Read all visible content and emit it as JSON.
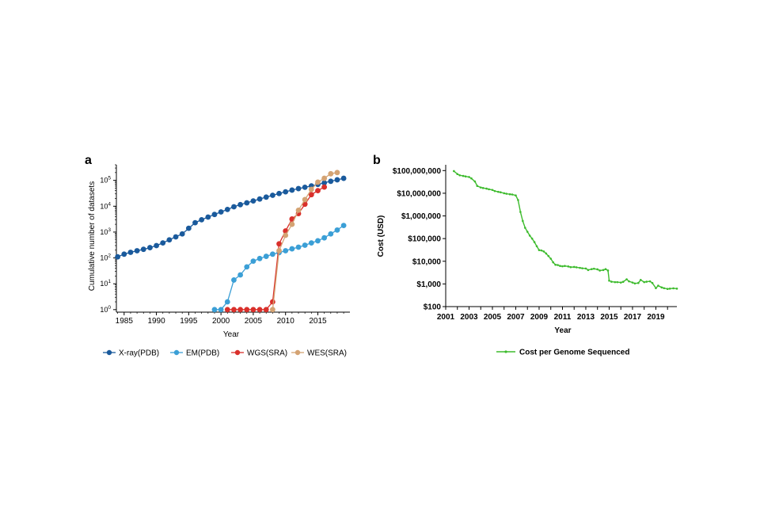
{
  "panels": {
    "a": {
      "letter": "a",
      "chart_data": {
        "type": "line",
        "log_scale_y": true,
        "xlabel": "Year",
        "ylabel": "Cumulative number of datasets",
        "xlim": [
          1983.8,
          2019.6
        ],
        "ylim": [
          0.8,
          400000
        ],
        "x_ticks": [
          1985,
          1990,
          1995,
          2000,
          2005,
          2010,
          2015
        ],
        "x_tick_labels": [
          "1985",
          "1990",
          "1995",
          "2000",
          "2005",
          "2010",
          "2015"
        ],
        "y_ticks": [
          1,
          10,
          100,
          1000,
          10000,
          100000
        ],
        "y_tick_exponents": [
          "0",
          "1",
          "2",
          "3",
          "4",
          "5"
        ],
        "y_tick_base": "10",
        "legend_position": "bottom",
        "series": [
          {
            "name": "X-ray(PDB)",
            "color": "#1a5a9c",
            "x": [
              1984,
              1985,
              1986,
              1987,
              1988,
              1989,
              1990,
              1991,
              1992,
              1993,
              1994,
              1995,
              1996,
              1997,
              1998,
              1999,
              2000,
              2001,
              2002,
              2003,
              2004,
              2005,
              2006,
              2007,
              2008,
              2009,
              2010,
              2011,
              2012,
              2013,
              2014,
              2015,
              2016,
              2017,
              2018,
              2019
            ],
            "y": [
              110,
              140,
              165,
              190,
              215,
              250,
              300,
              380,
              500,
              650,
              850,
              1400,
              2300,
              3000,
              3800,
              4800,
              6000,
              7500,
              9500,
              11500,
              13500,
              16000,
              19000,
              22500,
              26500,
              31000,
              36000,
              42000,
              48000,
              54000,
              61000,
              70000,
              80000,
              92000,
              105000,
              120000
            ]
          },
          {
            "name": "EM(PDB)",
            "color": "#3b9fd6",
            "x": [
              1999,
              2000,
              2001,
              2002,
              2003,
              2004,
              2005,
              2006,
              2007,
              2008,
              2009,
              2010,
              2011,
              2012,
              2013,
              2014,
              2015,
              2016,
              2017,
              2018,
              2019
            ],
            "y": [
              1,
              1,
              2,
              14,
              22,
              45,
              75,
              95,
              115,
              140,
              160,
              190,
              225,
              260,
              310,
              380,
              460,
              600,
              850,
              1200,
              1800
            ]
          },
          {
            "name": "WGS(SRA)",
            "color": "#d9302b",
            "x": [
              2001,
              2002,
              2003,
              2004,
              2005,
              2006,
              2007,
              2008,
              2009,
              2010,
              2011,
              2012,
              2013,
              2014,
              2015,
              2016
            ],
            "y": [
              1,
              1,
              1,
              1,
              1,
              1,
              1,
              2,
              350,
              1100,
              3200,
              5200,
              12000,
              28000,
              40000,
              55000
            ]
          },
          {
            "name": "WES(SRA)",
            "color": "#d4a373",
            "x": [
              2008,
              2009,
              2010,
              2011,
              2012,
              2013,
              2014,
              2015,
              2016,
              2017,
              2018
            ],
            "y": [
              1,
              190,
              750,
              2000,
              7000,
              18000,
              45000,
              85000,
              120000,
              180000,
              200000
            ]
          }
        ]
      }
    },
    "b": {
      "letter": "b",
      "chart_data": {
        "type": "line",
        "log_scale_y": true,
        "xlabel": "Year",
        "ylabel": "Cost (USD)",
        "xlim": [
          2001,
          2020.8
        ],
        "ylim": [
          100,
          180000000
        ],
        "x_ticks": [
          2001,
          2003,
          2005,
          2007,
          2009,
          2011,
          2013,
          2015,
          2017,
          2019
        ],
        "x_tick_labels": [
          "2001",
          "2003",
          "2005",
          "2007",
          "2009",
          "2011",
          "2013",
          "2015",
          "2017",
          "2019"
        ],
        "y_ticks": [
          100,
          1000,
          10000,
          100000,
          1000000,
          10000000,
          100000000
        ],
        "y_tick_labels": [
          "$100",
          "$1,000",
          "$10,000",
          "$100,000",
          "$1,000,000",
          "$10,000,000",
          "$100,000,000"
        ],
        "legend_position": "bottom",
        "series": [
          {
            "name": "Cost per Genome Sequenced",
            "color": "#3dbb2d",
            "x": [
              2001.7,
              2002.0,
              2002.2,
              2002.5,
              2002.7,
              2003.0,
              2003.2,
              2003.5,
              2003.7,
              2004.0,
              2004.2,
              2004.5,
              2004.7,
              2005.0,
              2005.2,
              2005.5,
              2005.7,
              2006.0,
              2006.2,
              2006.5,
              2006.7,
              2007.0,
              2007.2,
              2007.4,
              2007.6,
              2007.8,
              2008.0,
              2008.2,
              2008.4,
              2008.6,
              2008.8,
              2009.0,
              2009.2,
              2009.4,
              2009.6,
              2009.8,
              2010.0,
              2010.2,
              2010.4,
              2010.6,
              2010.8,
              2011.0,
              2011.2,
              2011.5,
              2011.7,
              2012.0,
              2012.2,
              2012.5,
              2012.7,
              2013.0,
              2013.2,
              2013.5,
              2013.7,
              2014.0,
              2014.2,
              2014.5,
              2014.7,
              2014.9,
              2015.0,
              2015.2,
              2015.5,
              2015.7,
              2016.0,
              2016.2,
              2016.5,
              2016.7,
              2017.0,
              2017.2,
              2017.5,
              2017.7,
              2018.0,
              2018.2,
              2018.5,
              2018.7,
              2019.0,
              2019.2,
              2019.5,
              2019.7,
              2020.0,
              2020.2,
              2020.5,
              2020.8
            ],
            "y": [
              95000000,
              70000000,
              62000000,
              58000000,
              55000000,
              52000000,
              45000000,
              33000000,
              21000000,
              18000000,
              17000000,
              16000000,
              15000000,
              14000000,
              12500000,
              11500000,
              11000000,
              10000000,
              9500000,
              9000000,
              8800000,
              8000000,
              5000000,
              1500000,
              600000,
              300000,
              200000,
              135000,
              100000,
              70000,
              46000,
              31000,
              30000,
              27000,
              22000,
              17000,
              13000,
              9000,
              7000,
              6800,
              6200,
              6000,
              6200,
              5900,
              5500,
              5600,
              5400,
              5100,
              4900,
              4800,
              4100,
              4500,
              4700,
              4400,
              3900,
              4100,
              4500,
              3900,
              1400,
              1250,
              1200,
              1200,
              1150,
              1240,
              1600,
              1300,
              1150,
              1050,
              1100,
              1500,
              1200,
              1250,
              1300,
              1100,
              650,
              840,
              700,
              650,
              600,
              620,
              640,
              620
            ]
          }
        ]
      }
    }
  }
}
